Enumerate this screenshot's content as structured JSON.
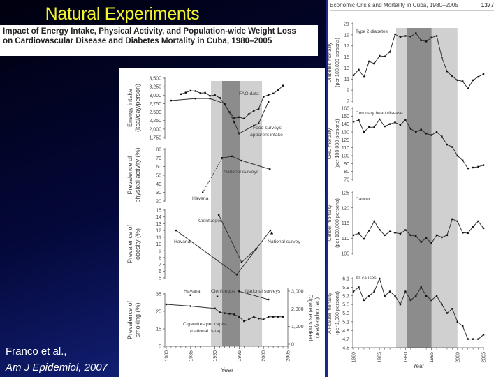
{
  "slide": {
    "title": "Natural Experiments",
    "subtitle_line1": "Impact of Energy Intake, Physical Activity, and Population-wide Weight Loss",
    "subtitle_line2": "on Cardiovascular Disease and Diabetes Mortality in Cuba, 1980–2005",
    "citation_line1": "Franco et al.,",
    "citation_line2": "Am J Epidemiol, 2007",
    "right_header": "Economic Crisis and Mortality in Cuba, 1980–2005",
    "right_page_number": "1377"
  },
  "colors": {
    "title": "#f4f42a",
    "shade_light": "#d0d0d0",
    "shade_dark": "#8c8c8c",
    "line": "#333333"
  },
  "chart_data": [
    {
      "type": "line",
      "panel": "left",
      "ylabel": [
        "Energy intake",
        "(kcal/day/person)"
      ],
      "ylim": [
        1750,
        3500
      ],
      "yticks": [
        1750,
        2000,
        2250,
        2500,
        2750,
        3000,
        3250,
        3500
      ],
      "ytick_labels": [
        "1,750",
        "2,000",
        "2,250",
        "2,500",
        "2,750",
        "3,000",
        "3,250",
        "3,500"
      ],
      "annotations": [
        "FAO data",
        "Food surveys",
        "apparent intake"
      ],
      "series": [
        {
          "name": "FAO data",
          "marker": "square",
          "points": [
            [
              1983,
              3030
            ],
            [
              1984,
              3075
            ],
            [
              1985,
              3130
            ],
            [
              1986,
              3120
            ],
            [
              1987,
              3060
            ],
            [
              1988,
              3070
            ],
            [
              1989,
              2980
            ],
            [
              1990,
              3000
            ],
            [
              1991,
              2920
            ],
            [
              1992,
              2720
            ],
            [
              1993,
              2500
            ],
            [
              1994,
              2320
            ],
            [
              1995,
              2350
            ],
            [
              1996,
              2310
            ],
            [
              1997,
              2440
            ],
            [
              1998,
              2540
            ],
            [
              1999,
              2600
            ],
            [
              2000,
              2950
            ],
            [
              2001,
              3010
            ],
            [
              2002,
              3050
            ],
            [
              2003,
              3150
            ],
            [
              2004,
              3280
            ]
          ]
        },
        {
          "name": "Food surveys apparent intake",
          "marker": "square",
          "points": [
            [
              1981,
              2840
            ],
            [
              1986,
              2900
            ],
            [
              1989,
              2900
            ],
            [
              1992,
              2750
            ],
            [
              1994,
              2200
            ],
            [
              1995,
              1870
            ],
            [
              1998,
              2100
            ],
            [
              1999,
              2170
            ],
            [
              2001,
              2800
            ]
          ]
        }
      ]
    },
    {
      "type": "line",
      "panel": "left",
      "ylabel": [
        "Prevalence of",
        "physical activity (%)"
      ],
      "ylim": [
        20,
        80
      ],
      "yticks": [
        20,
        30,
        40,
        50,
        60,
        70,
        80
      ],
      "ytick_labels": [
        "20",
        "30",
        "40",
        "50",
        "60",
        "70",
        "80"
      ],
      "annotations": [
        "National surveys",
        "Havana"
      ],
      "series": [
        {
          "name": "Havana",
          "marker": "square",
          "dashed": true,
          "points": [
            [
              1987.5,
              30
            ],
            [
              1991.5,
              70
            ]
          ]
        },
        {
          "name": "National surveys",
          "marker": "square",
          "points": [
            [
              1991.5,
              70
            ],
            [
              1993.5,
              72
            ],
            [
              1995.5,
              67
            ],
            [
              2001.3,
              57
            ]
          ]
        }
      ]
    },
    {
      "type": "line",
      "panel": "left",
      "ylabel": [
        "Prevalence of",
        "obesity (%)"
      ],
      "ylim": [
        5,
        15
      ],
      "yticks": [
        5,
        6,
        7,
        8,
        9,
        10,
        11,
        12,
        13,
        14,
        15
      ],
      "ytick_labels": [
        "5",
        "6",
        "7",
        "8",
        "9",
        "10",
        "11",
        "12",
        "13",
        "14",
        "15"
      ],
      "annotations": [
        "Cienfuegos",
        "Havana",
        "National survey"
      ],
      "series": [
        {
          "name": "Havana",
          "marker": "square",
          "points": [
            [
              1982,
              12
            ],
            [
              1994.5,
              5.5
            ],
            [
              2001.4,
              12
            ]
          ]
        },
        {
          "name": "Cienfuegos",
          "marker": "square",
          "points": [
            [
              1990.8,
              14.3
            ],
            [
              1995.5,
              7.3
            ],
            [
              1998.5,
              9.3
            ]
          ]
        },
        {
          "name": "National survey",
          "marker": "triangle",
          "points": [
            [
              2001.7,
              11.6
            ]
          ]
        }
      ]
    },
    {
      "type": "line",
      "panel": "left",
      "ylabel": [
        "Prevalence of",
        "smoking (%)"
      ],
      "ylim": [
        5,
        35
      ],
      "yticks": [
        5,
        15,
        25,
        35
      ],
      "ytick_labels": [
        "5",
        "15",
        "25",
        "35"
      ],
      "y2label": [
        "Cigarettes smoked",
        "(per capita/year)"
      ],
      "y2lim": [
        0,
        3000
      ],
      "y2ticks": [
        0,
        1000,
        2000,
        3000
      ],
      "y2tick_labels": [
        "0",
        "1,000",
        "2,000",
        "3,000"
      ],
      "xlabel": "Year",
      "xticks": [
        1980,
        1985,
        1990,
        1995,
        2000,
        2005
      ],
      "xtick_labels": [
        "1980",
        "1985",
        "1990",
        "1995",
        "2000",
        "2005"
      ],
      "annotations": [
        "Havana",
        "Cienfuegos",
        "National surveys",
        "Cigarettes per capita",
        "(national data)"
      ],
      "series": [
        {
          "name": "Havana",
          "marker": "square",
          "points": [
            [
              1985,
              34.3
            ]
          ]
        },
        {
          "name": "Cienfuegos",
          "marker": "square",
          "points": [
            [
              1990.5,
              33.5
            ]
          ]
        },
        {
          "name": "National surveys",
          "marker": "square",
          "points": [
            [
              1995,
              36.5
            ],
            [
              2001,
              31.8
            ]
          ]
        },
        {
          "name": "Cigarettes per capita (national data)",
          "axis": "right",
          "marker": "square",
          "points": [
            [
              1980,
              2250
            ],
            [
              1985,
              2150
            ],
            [
              1990,
              2020
            ],
            [
              1991,
              1800
            ],
            [
              1992,
              1750
            ],
            [
              1993,
              1720
            ],
            [
              1994,
              1680
            ],
            [
              1995,
              1550
            ],
            [
              1996,
              1300
            ],
            [
              1997,
              1400
            ],
            [
              1998,
              1550
            ],
            [
              1999,
              1450
            ],
            [
              2000,
              1400
            ],
            [
              2001,
              1550
            ],
            [
              2002,
              1550
            ],
            [
              2003,
              1550
            ],
            [
              2004,
              1550
            ]
          ]
        }
      ]
    },
    {
      "type": "line",
      "panel": "right",
      "ylabel": [
        "Diabetes mortality",
        "(per 100,000 persons)"
      ],
      "ylim": [
        7,
        21
      ],
      "yticks": [
        7,
        9,
        11,
        13,
        15,
        17,
        19,
        21
      ],
      "ytick_labels": [
        "7",
        "9",
        "11",
        "13",
        "15",
        "17",
        "19",
        "21"
      ],
      "annotations": [
        "Type 2 diabetes"
      ],
      "series": [
        {
          "name": "Type 2 diabetes",
          "marker": "square",
          "start_year": 1980,
          "values": [
            11.7,
            12.7,
            11.4,
            14.2,
            13.8,
            15.2,
            15.1,
            15.9,
            19.1,
            18.6,
            18.8,
            18.7,
            19.3,
            18.0,
            17.8,
            18.5,
            18.8,
            14.9,
            12.4,
            11.5,
            10.8,
            10.6,
            9.3,
            10.8,
            11.4,
            11.9
          ]
        }
      ]
    },
    {
      "type": "line",
      "panel": "right",
      "ylabel": [
        "CHD mortality",
        "(per 100,000 persons)"
      ],
      "ylim": [
        70,
        160
      ],
      "yticks": [
        70,
        80,
        90,
        100,
        110,
        120,
        130,
        140,
        150,
        160
      ],
      "ytick_labels": [
        "70",
        "80",
        "90",
        "100",
        "110",
        "120",
        "130",
        "140",
        "150",
        "160"
      ],
      "annotations": [
        "Coronary heart disease"
      ],
      "series": [
        {
          "name": "Coronary heart disease",
          "marker": "square",
          "start_year": 1980,
          "values": [
            143,
            145,
            130,
            136,
            136,
            146,
            137,
            140,
            142,
            139,
            145,
            134,
            130,
            133,
            128,
            126,
            130,
            124,
            114,
            111,
            100,
            94,
            84,
            85,
            86,
            88
          ]
        }
      ]
    },
    {
      "type": "line",
      "panel": "right",
      "ylabel": [
        "Cancer mortality",
        "(per 100,000 persons)"
      ],
      "ylim": [
        105,
        125
      ],
      "yticks": [
        105,
        110,
        115,
        120,
        125
      ],
      "ytick_labels": [
        "105",
        "110",
        "115",
        "120",
        "125"
      ],
      "annotations": [
        "Cancer"
      ],
      "series": [
        {
          "name": "Cancer",
          "marker": "square",
          "start_year": 1980,
          "values": [
            111,
            111.6,
            109.8,
            112.5,
            115.6,
            112.8,
            111,
            112.2,
            111.8,
            111.5,
            112.7,
            111,
            110.7,
            108.8,
            110,
            108.4,
            111,
            110.3,
            111,
            116.3,
            115.6,
            111.8,
            111.7,
            113.8,
            115.6,
            113.3
          ]
        }
      ]
    },
    {
      "type": "line",
      "panel": "right",
      "ylabel": [
        "All-cause mortality",
        "(per 1,000 persons)"
      ],
      "ylim": [
        4.5,
        6.1
      ],
      "yticks": [
        4.5,
        4.7,
        4.9,
        5.1,
        5.3,
        5.5,
        5.7,
        5.9,
        6.1
      ],
      "ytick_labels": [
        "4.5",
        "4.7",
        "4.9",
        "5.1",
        "5.3",
        "5.5",
        "5.7",
        "5.9",
        "6.1"
      ],
      "xlabel": "Year",
      "xticks": [
        1980,
        1985,
        1990,
        1995,
        2000,
        2005
      ],
      "xtick_labels": [
        "1980",
        "1985",
        "1990",
        "1995",
        "2000",
        "2005"
      ],
      "annotations": [
        "All causes"
      ],
      "series": [
        {
          "name": "All causes",
          "marker": "square",
          "start_year": 1980,
          "values": [
            5.8,
            5.9,
            5.6,
            5.7,
            5.8,
            6.1,
            5.7,
            5.8,
            5.7,
            5.5,
            5.8,
            5.6,
            5.7,
            5.9,
            5.7,
            5.6,
            5.7,
            5.5,
            5.3,
            5.4,
            5.1,
            5.0,
            4.7,
            4.7,
            4.7,
            4.8
          ]
        }
      ]
    }
  ],
  "shaded_periods": {
    "left": {
      "light": [
        1989.2,
        1999.7
      ],
      "dark": [
        1991.5,
        1995.2
      ]
    },
    "right": {
      "light": [
        1988.2,
        2000
      ],
      "dark": [
        1990.3,
        1995
      ]
    }
  }
}
